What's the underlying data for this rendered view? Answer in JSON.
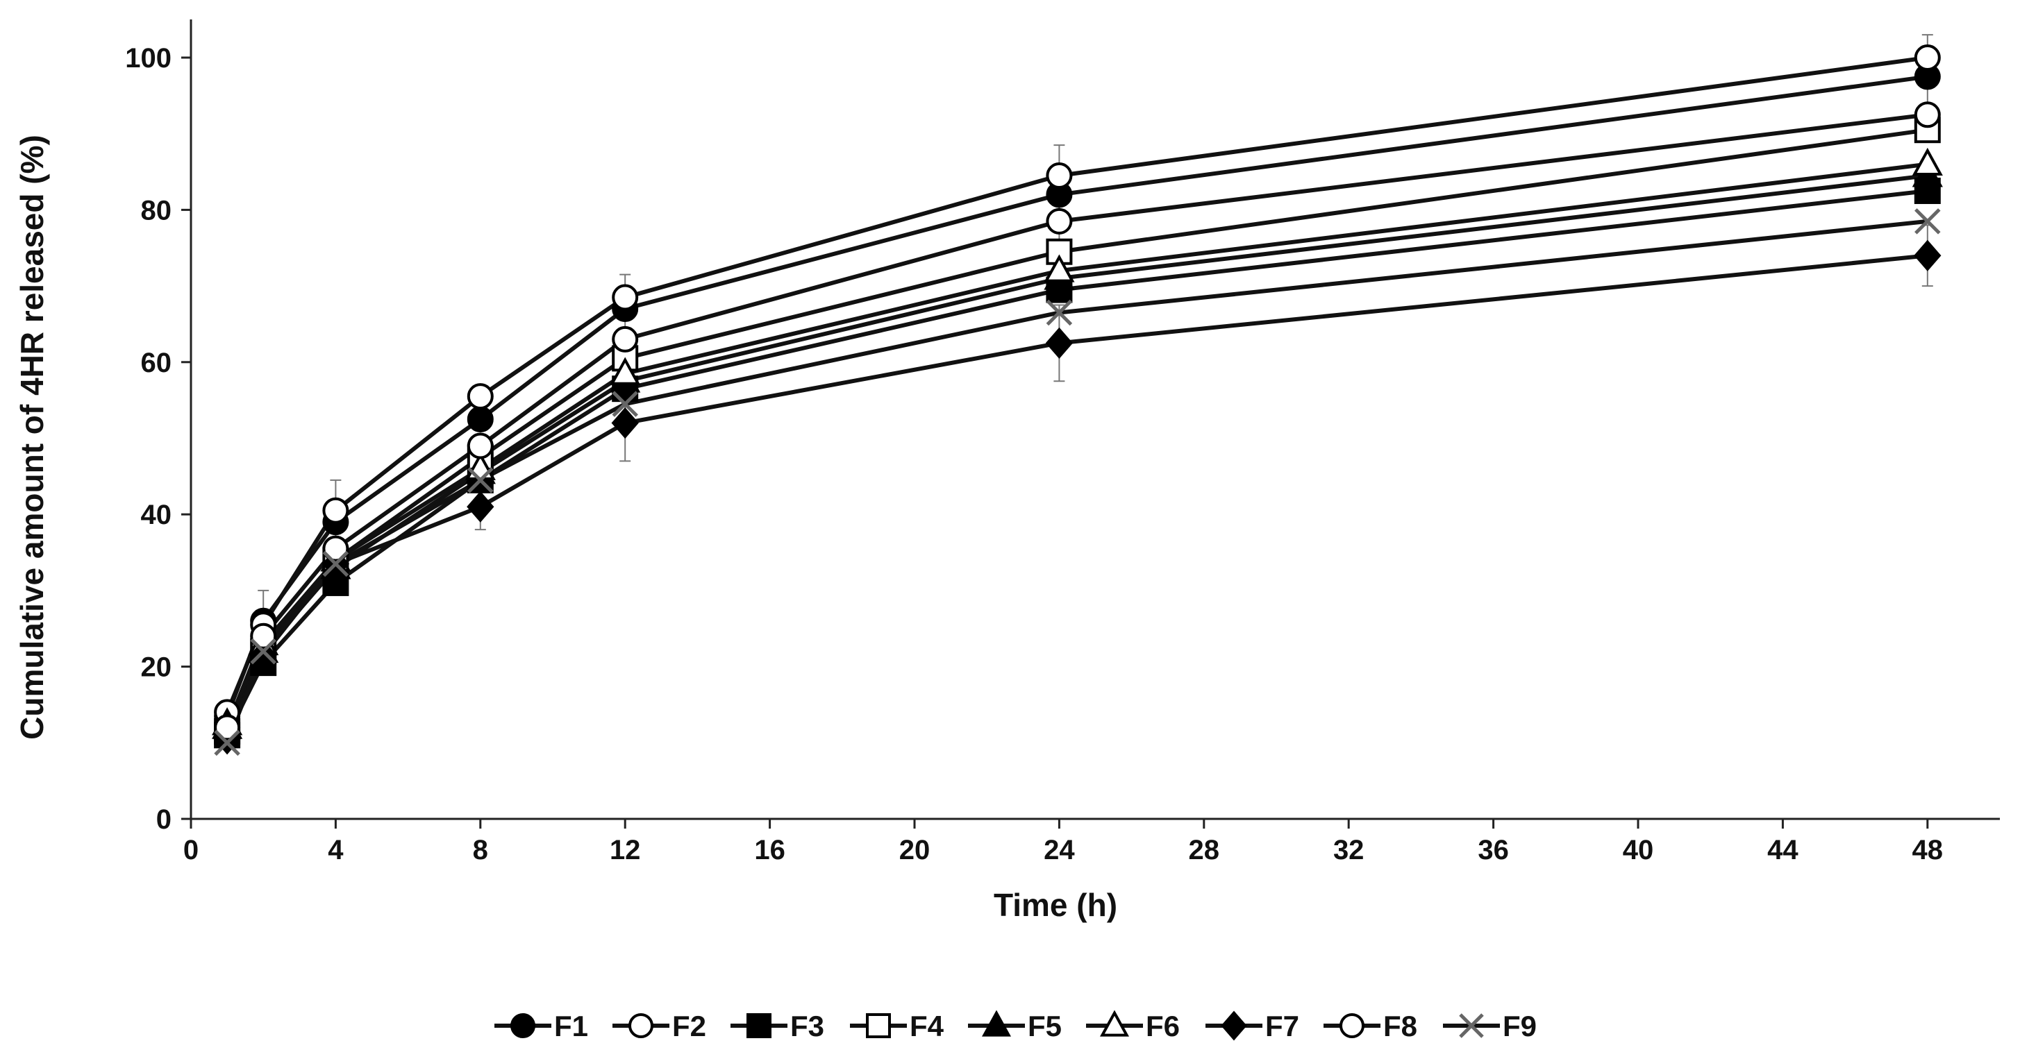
{
  "chart_data": {
    "type": "line",
    "title": "",
    "xlabel": "Time (h)",
    "ylabel": "Cumulative amount of 4HR released (%)",
    "xlim": [
      0,
      50
    ],
    "ylim": [
      0,
      100
    ],
    "x_ticks": [
      0,
      4,
      8,
      12,
      16,
      20,
      24,
      28,
      32,
      36,
      40,
      44,
      48
    ],
    "y_ticks": [
      0,
      20,
      40,
      60,
      80,
      100
    ],
    "grid": false,
    "legend_position": "bottom-center",
    "x": [
      1,
      2,
      4,
      8,
      12,
      24,
      48
    ],
    "series": [
      {
        "name": "F1",
        "marker": "filled-circle",
        "color": "#000000",
        "values": [
          13.5,
          26.0,
          39.0,
          52.5,
          67.0,
          82.0,
          97.5
        ],
        "errors": [
          0,
          4.0,
          0,
          0,
          4.5,
          6.5,
          4.0
        ]
      },
      {
        "name": "F2",
        "marker": "open-circle",
        "color": "#000000",
        "values": [
          14.0,
          25.5,
          40.5,
          55.5,
          68.5,
          84.5,
          100.0
        ],
        "errors": [
          0,
          0,
          4.0,
          0,
          0,
          0,
          3.0
        ]
      },
      {
        "name": "F3",
        "marker": "filled-square",
        "color": "#000000",
        "values": [
          11.0,
          20.5,
          31.0,
          44.5,
          56.5,
          69.5,
          82.5
        ],
        "errors": [
          0,
          0,
          0,
          0,
          0,
          0,
          0
        ]
      },
      {
        "name": "F4",
        "marker": "open-square",
        "color": "#000000",
        "values": [
          11.5,
          22.0,
          34.0,
          47.5,
          60.5,
          74.5,
          90.5
        ],
        "errors": [
          0,
          0,
          0,
          0,
          0,
          0,
          0
        ]
      },
      {
        "name": "F5",
        "marker": "filled-triangle",
        "color": "#000000",
        "values": [
          12.5,
          22.0,
          33.0,
          45.5,
          57.5,
          71.0,
          84.5
        ],
        "errors": [
          0,
          0,
          0,
          0,
          0,
          0,
          0
        ]
      },
      {
        "name": "F6",
        "marker": "open-triangle",
        "color": "#000000",
        "values": [
          12.0,
          23.0,
          34.0,
          46.0,
          58.5,
          72.0,
          86.0
        ],
        "errors": [
          0,
          0,
          0,
          0,
          0,
          0,
          0
        ]
      },
      {
        "name": "F7",
        "marker": "filled-diamond",
        "color": "#000000",
        "values": [
          10.5,
          21.5,
          33.5,
          41.0,
          52.0,
          62.5,
          74.0
        ],
        "errors": [
          0,
          0,
          0,
          3.0,
          5.0,
          5.0,
          4.0
        ]
      },
      {
        "name": "F8",
        "marker": "open-circle",
        "color": "#000000",
        "values": [
          12.0,
          24.0,
          35.5,
          49.0,
          63.0,
          78.5,
          92.5
        ],
        "errors": [
          0,
          0,
          0,
          0,
          0,
          0,
          0
        ]
      },
      {
        "name": "F9",
        "marker": "x-cross",
        "color": "#666666",
        "values": [
          10.0,
          22.0,
          33.5,
          44.5,
          54.5,
          66.5,
          78.5
        ],
        "errors": [
          0,
          0,
          0,
          0,
          0,
          0,
          0
        ]
      }
    ]
  }
}
